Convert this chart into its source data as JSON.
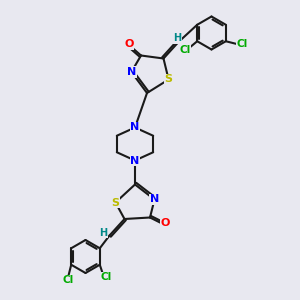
{
  "bg_color": "#e8e8f0",
  "bond_color": "#1a1a1a",
  "bond_width": 1.5,
  "atom_colors": {
    "N": "#0000ff",
    "O": "#ff0000",
    "S": "#bbbb00",
    "Cl": "#00aa00",
    "H": "#008888",
    "C": "#1a1a1a"
  },
  "font_size": 7.5
}
